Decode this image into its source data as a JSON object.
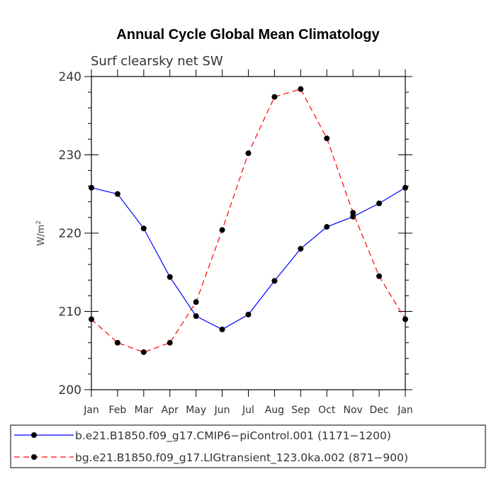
{
  "chart_data": {
    "type": "line",
    "title": "Annual Cycle Global Mean Climatology",
    "subtitle": "Surf clearsky net SW",
    "ylabel": "W/m",
    "ylabel_sup": "2",
    "ylim": [
      200,
      240
    ],
    "yticks": [
      200,
      210,
      220,
      230,
      240
    ],
    "ytick_labels": [
      "200",
      "210",
      "220",
      "230",
      "240"
    ],
    "categories": [
      "Jan",
      "Feb",
      "Mar",
      "Apr",
      "May",
      "Jun",
      "Jul",
      "Aug",
      "Sep",
      "Oct",
      "Nov",
      "Dec",
      "Jan"
    ],
    "grid": false,
    "legend_position": "bottom",
    "series": [
      {
        "name": "b.e21.B1850.f09_g17.CMIP6−piControl.001 (1171−1200)",
        "color": "#0000ff",
        "dash": "solid",
        "marker_color": "#000000",
        "values": [
          225.8,
          225.0,
          220.6,
          214.4,
          209.4,
          207.7,
          209.6,
          213.9,
          218.0,
          220.8,
          222.1,
          223.8,
          225.8
        ]
      },
      {
        "name": "bg.e21.B1850.f09_g17.LIGtransient_123.0ka.002 (871−900)",
        "color": "#ff0000",
        "dash": "dashed",
        "marker_color": "#000000",
        "values": [
          209.0,
          206.0,
          204.8,
          206.0,
          211.2,
          220.4,
          230.2,
          237.4,
          238.4,
          232.1,
          222.6,
          214.5,
          209.0
        ]
      }
    ]
  }
}
